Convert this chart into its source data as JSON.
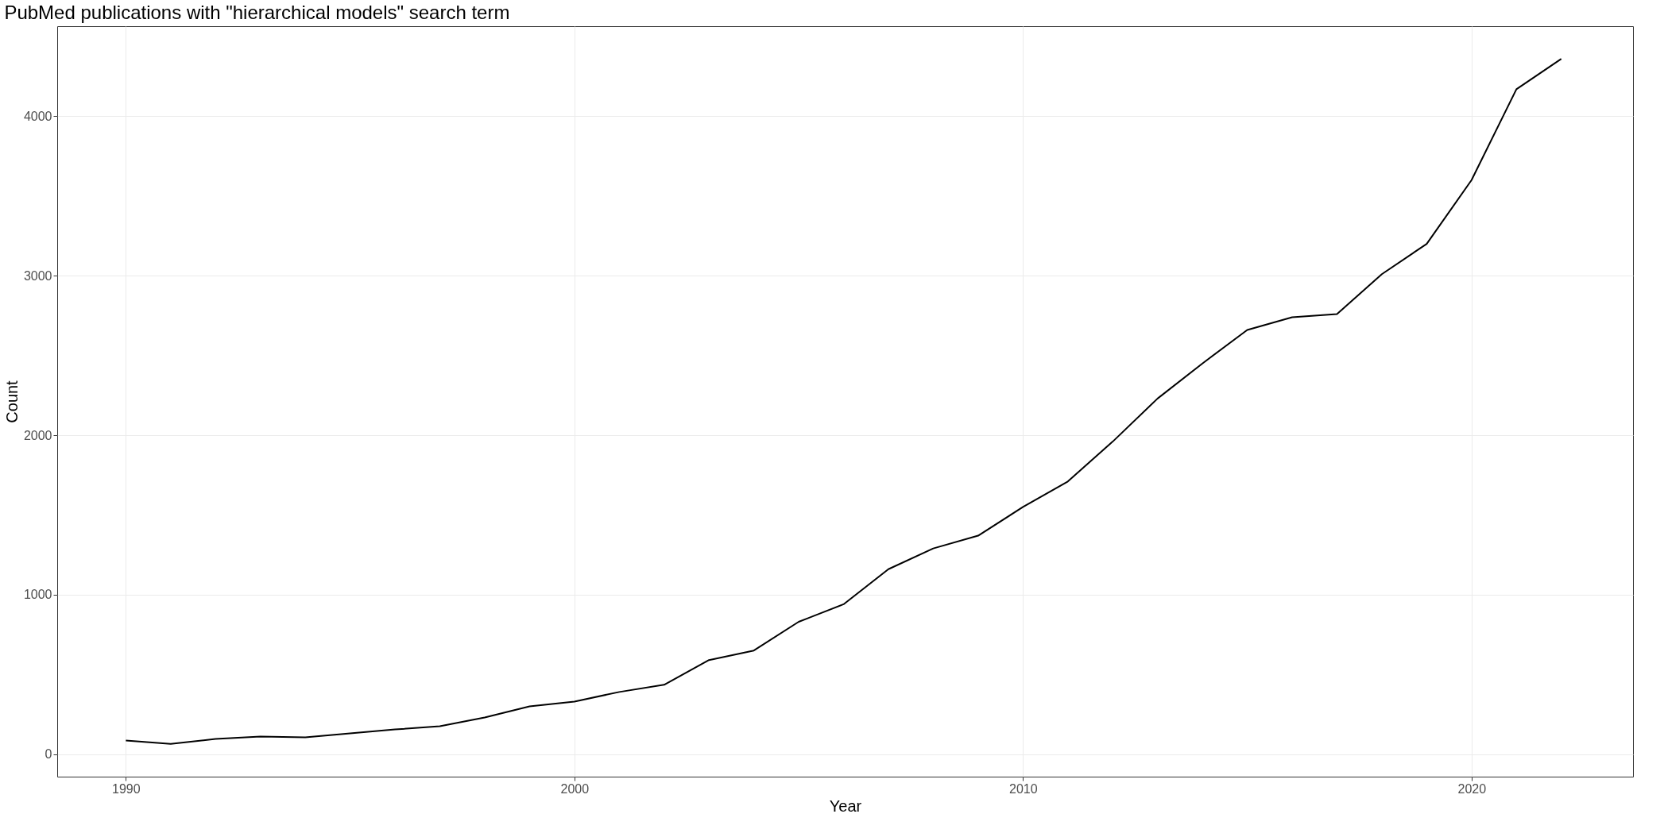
{
  "chart_data": {
    "type": "line",
    "title": "PubMed publications with \"hierarchical models\" search term",
    "xlabel": "Year",
    "ylabel": "Count",
    "x": [
      1990,
      1991,
      1992,
      1993,
      1994,
      1995,
      1996,
      1997,
      1998,
      1999,
      2000,
      2001,
      2002,
      2003,
      2004,
      2005,
      2006,
      2007,
      2008,
      2009,
      2010,
      2011,
      2012,
      2013,
      2014,
      2015,
      2016,
      2017,
      2018,
      2019,
      2020,
      2021,
      2022
    ],
    "series": [
      {
        "color": "#000000",
        "values": [
          85,
          65,
          95,
          110,
          105,
          130,
          155,
          175,
          230,
          300,
          330,
          390,
          435,
          590,
          650,
          830,
          940,
          1160,
          1290,
          1370,
          1550,
          1710,
          1960,
          2230,
          2450,
          2660,
          2740,
          2760,
          3010,
          3200,
          3600,
          4170,
          4360
        ]
      }
    ],
    "xlim": [
      1988.47,
      2023.6
    ],
    "ylim": [
      -141,
      4565
    ],
    "xticks": [
      1990,
      2000,
      2010,
      2020
    ],
    "yticks": [
      0,
      1000,
      2000,
      3000,
      4000
    ],
    "grid": true,
    "marker": "none",
    "line_style": "solid"
  }
}
